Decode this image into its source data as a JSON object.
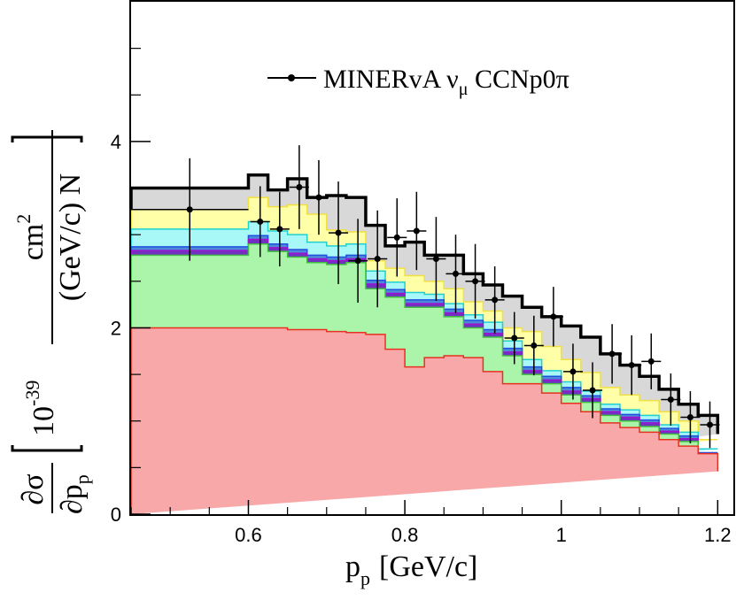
{
  "chart_data": {
    "type": "area",
    "xlabel_main": "p",
    "xlabel_sub": "p",
    "xlabel_unit": "[GeV/c]",
    "ylabel": {
      "partial_top": "∂σ",
      "partial_bottom_main": "∂p",
      "partial_bottom_sub": "p",
      "scale_base": "10",
      "scale_exp": "-39",
      "frac_num_main": "cm",
      "frac_num_sup": "2",
      "frac_den": "(GeV/c) N"
    },
    "xlim": [
      0.45,
      1.22
    ],
    "ylim": [
      0,
      5.5
    ],
    "x_ticks": [
      {
        "value": 0.6,
        "label": "0.6"
      },
      {
        "value": 0.8,
        "label": "0.8"
      },
      {
        "value": 1.0,
        "label": "1"
      },
      {
        "value": 1.2,
        "label": "1.2"
      }
    ],
    "y_ticks": [
      {
        "value": 0,
        "label": "0"
      },
      {
        "value": 2,
        "label": "2"
      },
      {
        "value": 4,
        "label": "4"
      }
    ],
    "legend": {
      "placement": "top-center",
      "text": "MINERvA ν",
      "sub": "μ",
      "suffix": " CCNp0π"
    },
    "bin_edges": [
      0.45,
      0.6,
      0.625,
      0.65,
      0.675,
      0.7,
      0.725,
      0.75,
      0.775,
      0.8,
      0.825,
      0.85,
      0.875,
      0.9,
      0.925,
      0.95,
      0.975,
      1.0,
      1.025,
      1.05,
      1.075,
      1.1,
      1.125,
      1.15,
      1.175,
      1.2
    ],
    "stack_colors": [
      "#f8a8a8",
      "#aaf5aa",
      "#7030c0",
      "#4a8ad8",
      "#a8f8f8",
      "#ffffa8",
      "#d8d8d8"
    ],
    "stack_line_colors": [
      "#e83020",
      "#40c040",
      "#a010d0",
      "#2050e0",
      "#20d0d0",
      "#f0e040",
      "#000000"
    ],
    "stack_cumulative": [
      [
        2.0,
        2.0,
        2.0,
        1.98,
        1.98,
        1.96,
        1.95,
        1.93,
        1.77,
        1.58,
        1.68,
        1.7,
        1.68,
        1.53,
        1.4,
        1.4,
        1.3,
        1.19,
        1.1,
        0.98,
        0.93,
        0.88,
        0.8,
        0.73,
        0.65,
        0.46
      ],
      [
        2.78,
        2.9,
        2.82,
        2.76,
        2.7,
        2.68,
        2.7,
        2.42,
        2.33,
        2.22,
        2.22,
        2.12,
        2.0,
        1.9,
        1.7,
        1.5,
        1.4,
        1.28,
        1.2,
        1.06,
        1.0,
        0.94,
        0.86,
        0.78,
        0.62,
        0.62
      ],
      [
        2.83,
        2.95,
        2.86,
        2.8,
        2.74,
        2.72,
        2.74,
        2.47,
        2.37,
        2.26,
        2.26,
        2.16,
        2.04,
        1.94,
        1.74,
        1.54,
        1.44,
        1.32,
        1.24,
        1.1,
        1.04,
        0.98,
        0.89,
        0.81,
        0.64,
        0.64
      ],
      [
        2.87,
        2.99,
        2.9,
        2.84,
        2.78,
        2.76,
        2.78,
        2.51,
        2.41,
        2.3,
        2.3,
        2.2,
        2.08,
        1.98,
        1.78,
        1.58,
        1.48,
        1.36,
        1.27,
        1.13,
        1.07,
        1.01,
        0.92,
        0.84,
        0.66,
        0.66
      ],
      [
        3.06,
        3.14,
        3.04,
        3.0,
        2.92,
        2.88,
        2.9,
        2.61,
        2.49,
        2.38,
        2.36,
        2.26,
        2.14,
        2.06,
        1.86,
        1.66,
        1.54,
        1.42,
        1.32,
        1.18,
        1.12,
        1.06,
        0.96,
        0.88,
        0.7,
        0.7
      ],
      [
        3.27,
        3.4,
        3.3,
        3.32,
        3.22,
        3.05,
        3.03,
        2.72,
        2.64,
        2.56,
        2.5,
        2.42,
        2.28,
        2.18,
        2.0,
        1.96,
        1.8,
        1.66,
        1.52,
        1.36,
        1.28,
        1.22,
        1.1,
        1.0,
        0.8,
        0.8
      ],
      [
        3.5,
        3.64,
        3.48,
        3.6,
        3.4,
        3.42,
        3.4,
        3.1,
        2.88,
        2.92,
        2.78,
        2.78,
        2.58,
        2.46,
        2.34,
        2.22,
        2.12,
        2.02,
        1.9,
        1.72,
        1.6,
        1.48,
        1.34,
        1.18,
        1.06,
        0.86
      ]
    ],
    "series": [
      {
        "name": "MINERvA ν_μ CCNp0π",
        "x": [
          0.525,
          0.615,
          0.64,
          0.665,
          0.69,
          0.715,
          0.74,
          0.765,
          0.79,
          0.815,
          0.84,
          0.865,
          0.89,
          0.915,
          0.94,
          0.965,
          0.99,
          1.015,
          1.04,
          1.065,
          1.09,
          1.115,
          1.14,
          1.165,
          1.19
        ],
        "y": [
          3.27,
          3.14,
          3.06,
          3.51,
          3.4,
          3.02,
          2.72,
          2.74,
          2.97,
          3.04,
          2.74,
          2.58,
          2.5,
          2.3,
          1.89,
          1.81,
          2.12,
          1.53,
          1.33,
          1.72,
          1.6,
          1.64,
          1.23,
          1.04,
          0.96
        ],
        "err": [
          0.55,
          0.38,
          0.4,
          0.45,
          0.4,
          0.55,
          0.45,
          0.52,
          0.42,
          0.42,
          0.45,
          0.42,
          0.4,
          0.36,
          0.28,
          0.32,
          0.32,
          0.3,
          0.3,
          0.32,
          0.32,
          0.3,
          0.28,
          0.28,
          0.25
        ],
        "xerr": [
          0.075,
          0.0125,
          0.0125,
          0.0125,
          0.0125,
          0.0125,
          0.0125,
          0.0125,
          0.0125,
          0.0125,
          0.0125,
          0.0125,
          0.0125,
          0.0125,
          0.0125,
          0.0125,
          0.0125,
          0.0125,
          0.0125,
          0.0125,
          0.0125,
          0.0125,
          0.0125,
          0.0125,
          0.0125
        ]
      }
    ]
  }
}
